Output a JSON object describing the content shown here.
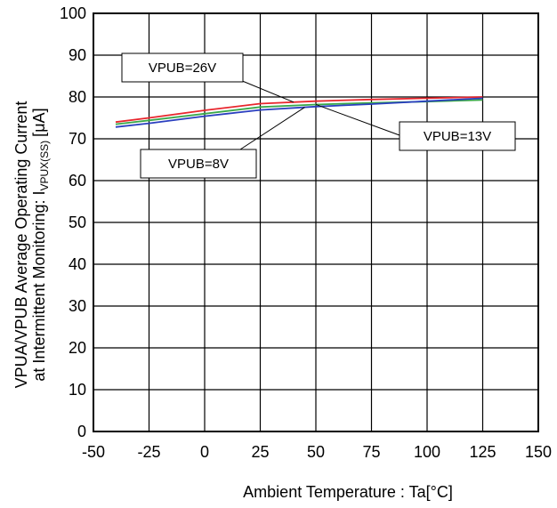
{
  "chart_data": {
    "type": "line",
    "xlabel": "Ambient Temperature : Ta[°C]",
    "ylabel": {
      "line1": "VPUA/VPUB Average Operating Current",
      "line2_main": "at Intermittent Monitoring: I",
      "line2_sub": "VPUX(SS)",
      "line2_unit": "[μA]"
    },
    "xlim": [
      -50,
      150
    ],
    "ylim": [
      0,
      100
    ],
    "x_ticks": [
      -50,
      -25,
      0,
      25,
      50,
      75,
      100,
      125,
      150
    ],
    "y_ticks": [
      0,
      10,
      20,
      30,
      40,
      50,
      60,
      70,
      80,
      90,
      100
    ],
    "grid": true,
    "x": [
      -40,
      -25,
      0,
      25,
      50,
      75,
      100,
      125
    ],
    "series": [
      {
        "name": "VPUB=26V",
        "color": "#e8262d",
        "values": [
          74.0,
          75.0,
          76.8,
          78.4,
          79.0,
          79.4,
          79.7,
          80.0
        ]
      },
      {
        "name": "VPUB=13V",
        "color": "#3aa84a",
        "values": [
          73.5,
          74.4,
          76.0,
          77.6,
          78.2,
          78.6,
          78.9,
          79.3
        ]
      },
      {
        "name": "VPUB=8V",
        "color": "#2a3fbf",
        "values": [
          72.8,
          73.7,
          75.4,
          76.9,
          77.7,
          78.3,
          79.0,
          79.7
        ]
      }
    ],
    "callouts": [
      {
        "label": "VPUB=26V",
        "series": 0
      },
      {
        "label": "VPUB=13V",
        "series": 1
      },
      {
        "label": "VPUB=8V",
        "series": 2
      }
    ]
  }
}
